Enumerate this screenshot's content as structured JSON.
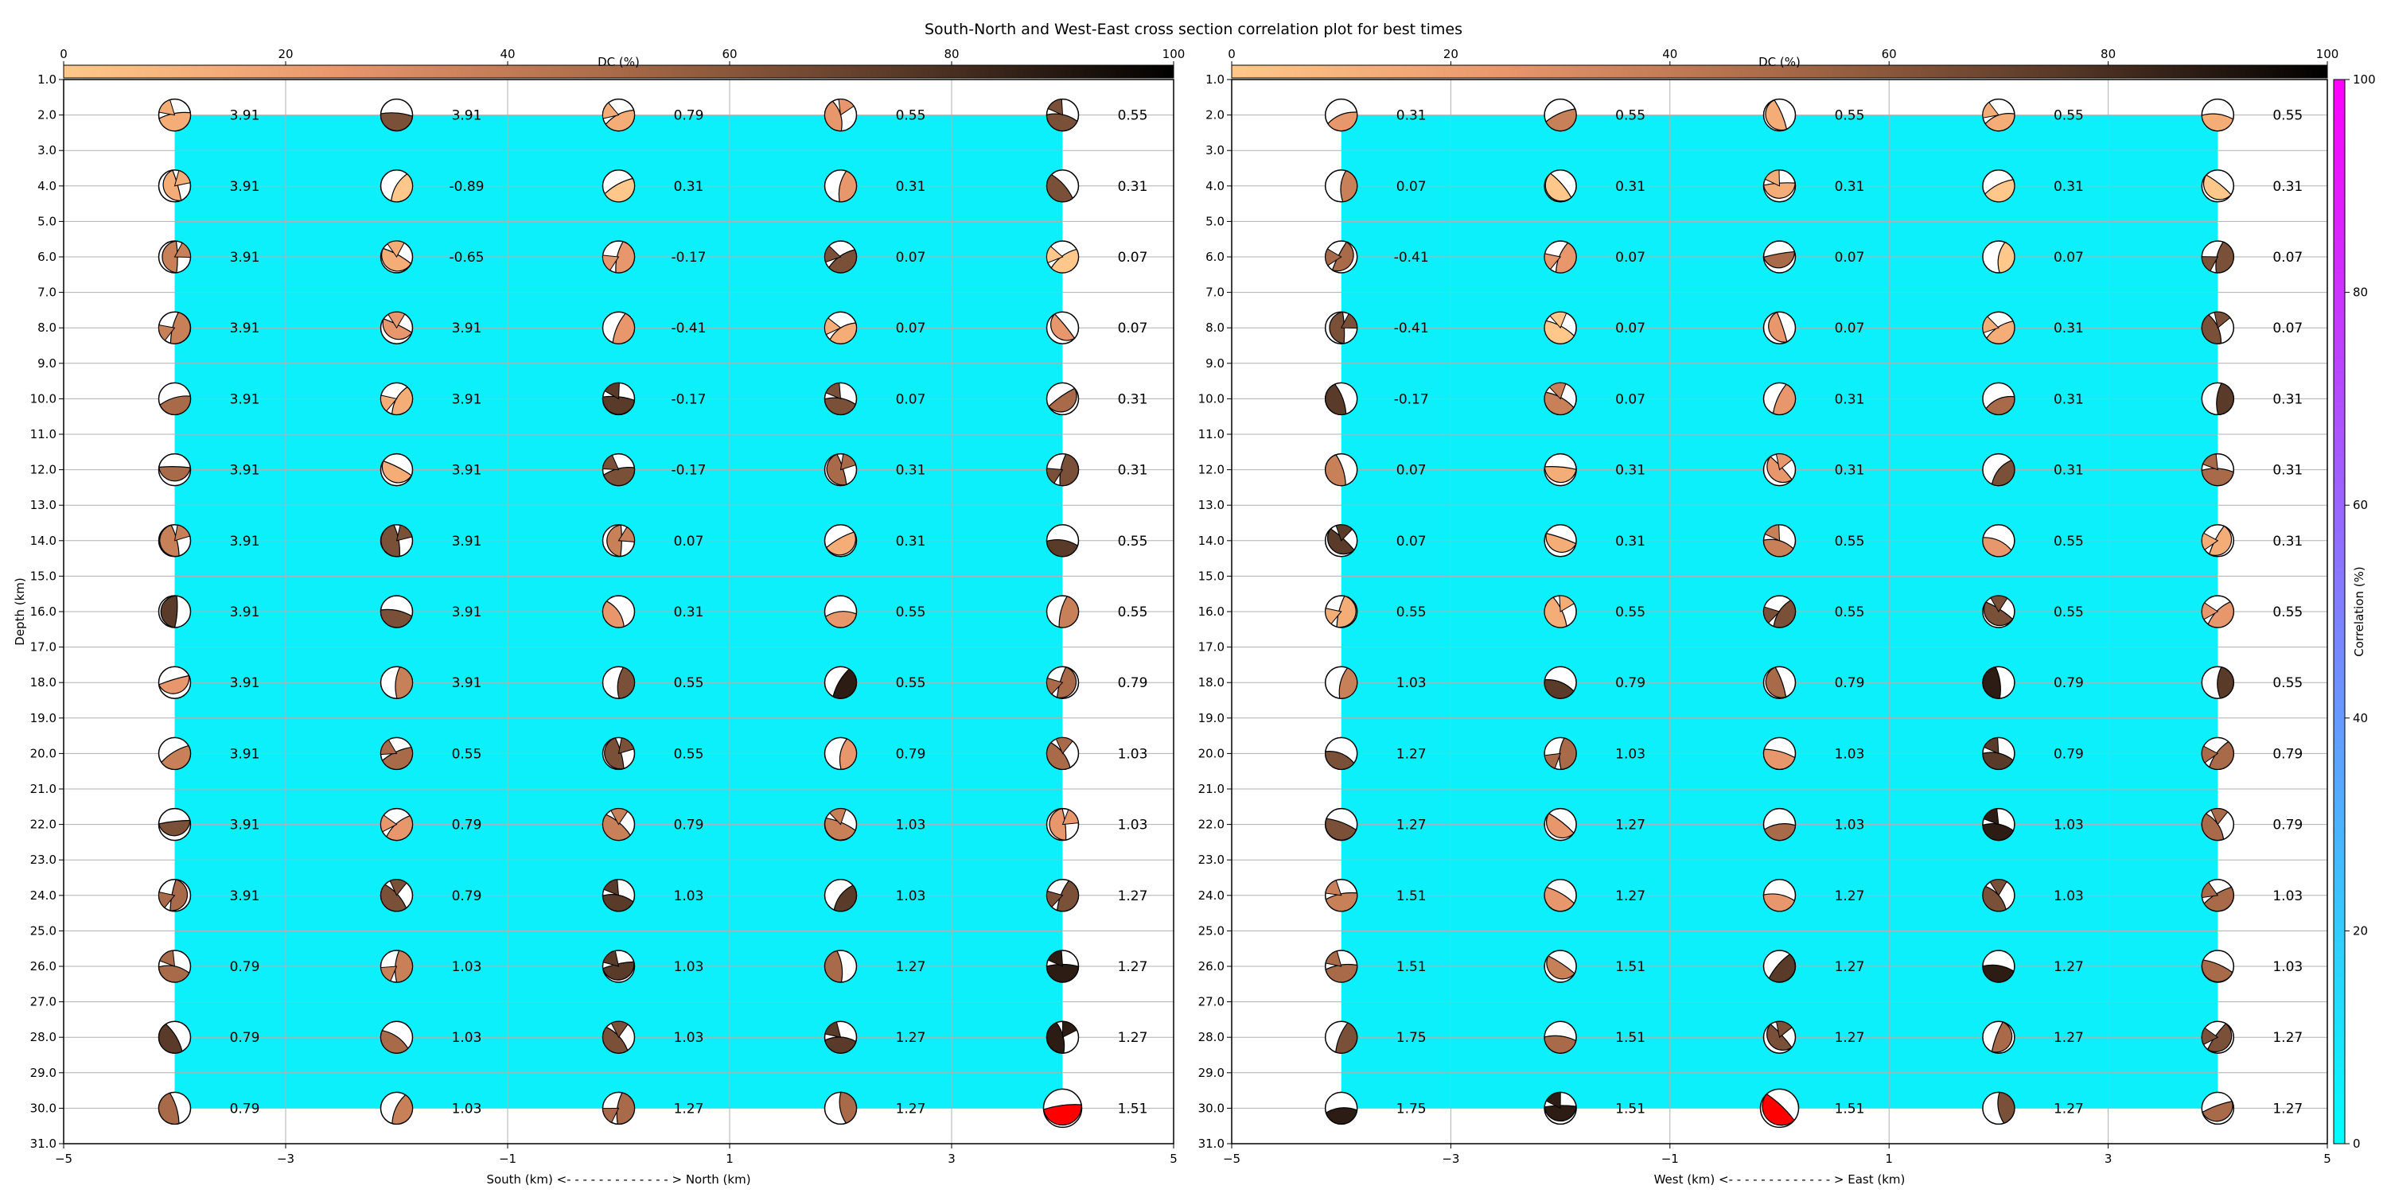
{
  "title": "South-North and West-East cross section correlation plot for best times",
  "colors": {
    "sampled_area": "#0cf0fc",
    "highlight_best": "#ff0000",
    "dc_colormap": [
      "#ffc88a",
      "#e8966c",
      "#a86a48",
      "#5a3a28",
      "#000000"
    ],
    "corr_colormap": [
      "#00ffff",
      "#ff00ff"
    ]
  },
  "dc_colorbar": {
    "label": "DC (%)",
    "ticks": [
      "0",
      "20",
      "40",
      "60",
      "80",
      "100"
    ]
  },
  "corr_colorbar": {
    "label": "Correlation (%)",
    "ticks": [
      "0",
      "20",
      "40",
      "60",
      "80",
      "100"
    ]
  },
  "y_axis": {
    "label": "Depth (km)",
    "ticks": [
      "1.0",
      "2.0",
      "3.0",
      "4.0",
      "5.0",
      "6.0",
      "7.0",
      "8.0",
      "9.0",
      "10.0",
      "11.0",
      "12.0",
      "13.0",
      "14.0",
      "15.0",
      "16.0",
      "17.0",
      "18.0",
      "19.0",
      "20.0",
      "21.0",
      "22.0",
      "23.0",
      "24.0",
      "25.0",
      "26.0",
      "27.0",
      "28.0",
      "29.0",
      "30.0",
      "31.0"
    ]
  },
  "chart_data": [
    {
      "type": "scatter",
      "x_axis": {
        "label": "South (km) <- - - - - - - - - - - - - > North (km)",
        "ticks": [
          "−5",
          "−3",
          "−1",
          "1",
          "3",
          "5"
        ],
        "xlim": [
          -5,
          5
        ]
      },
      "ylim": [
        31,
        1
      ],
      "grid": true,
      "x": [
        -4,
        -2,
        0,
        2,
        4
      ],
      "depths": [
        2,
        4,
        6,
        8,
        10,
        12,
        14,
        16,
        18,
        20,
        22,
        24,
        26,
        28,
        30
      ],
      "labels": [
        [
          "3.91",
          "3.91",
          "0.79",
          "0.55",
          "0.55"
        ],
        [
          "3.91",
          "-0.89",
          "0.31",
          "0.31",
          "0.31"
        ],
        [
          "3.91",
          "-0.65",
          "-0.17",
          "0.07",
          "0.07"
        ],
        [
          "3.91",
          "3.91",
          "-0.41",
          "0.07",
          "0.07"
        ],
        [
          "3.91",
          "3.91",
          "-0.17",
          "0.07",
          "0.31"
        ],
        [
          "3.91",
          "3.91",
          "-0.17",
          "0.31",
          "0.31"
        ],
        [
          "3.91",
          "3.91",
          "0.07",
          "0.31",
          "0.55"
        ],
        [
          "3.91",
          "3.91",
          "0.31",
          "0.55",
          "0.55"
        ],
        [
          "3.91",
          "3.91",
          "0.55",
          "0.55",
          "0.79"
        ],
        [
          "3.91",
          "0.55",
          "0.55",
          "0.79",
          "1.03"
        ],
        [
          "3.91",
          "0.79",
          "0.79",
          "1.03",
          "1.03"
        ],
        [
          "3.91",
          "0.79",
          "1.03",
          "1.03",
          "1.27"
        ],
        [
          "0.79",
          "1.03",
          "1.03",
          "1.27",
          "1.27"
        ],
        [
          "0.79",
          "1.03",
          "1.03",
          "1.27",
          "1.27"
        ],
        [
          "0.79",
          "1.03",
          "1.27",
          "1.27",
          "1.51"
        ]
      ],
      "best": {
        "x": 4,
        "depth": 30
      }
    },
    {
      "type": "scatter",
      "x_axis": {
        "label": "West (km) <- - - - - - - - - - - - - > East (km)",
        "ticks": [
          "−5",
          "−3",
          "−1",
          "1",
          "3",
          "5"
        ],
        "xlim": [
          -5,
          5
        ]
      },
      "ylim": [
        31,
        1
      ],
      "grid": true,
      "x": [
        -4,
        -2,
        0,
        2,
        4
      ],
      "depths": [
        2,
        4,
        6,
        8,
        10,
        12,
        14,
        16,
        18,
        20,
        22,
        24,
        26,
        28,
        30
      ],
      "labels": [
        [
          "0.31",
          "0.55",
          "0.55",
          "0.55",
          "0.55"
        ],
        [
          "0.07",
          "0.31",
          "0.31",
          "0.31",
          "0.31"
        ],
        [
          "-0.41",
          "0.07",
          "0.07",
          "0.07",
          "0.07"
        ],
        [
          "-0.41",
          "0.07",
          "0.07",
          "0.31",
          "0.07"
        ],
        [
          "-0.17",
          "0.07",
          "0.31",
          "0.31",
          "0.31"
        ],
        [
          "0.07",
          "0.31",
          "0.31",
          "0.31",
          "0.31"
        ],
        [
          "0.07",
          "0.31",
          "0.55",
          "0.55",
          "0.31"
        ],
        [
          "0.55",
          "0.55",
          "0.55",
          "0.55",
          "0.55"
        ],
        [
          "1.03",
          "0.79",
          "0.79",
          "0.79",
          "0.55"
        ],
        [
          "1.27",
          "1.03",
          "1.03",
          "0.79",
          "0.79"
        ],
        [
          "1.27",
          "1.27",
          "1.03",
          "1.03",
          "0.79"
        ],
        [
          "1.51",
          "1.27",
          "1.27",
          "1.03",
          "1.03"
        ],
        [
          "1.51",
          "1.51",
          "1.27",
          "1.27",
          "1.03"
        ],
        [
          "1.75",
          "1.51",
          "1.27",
          "1.27",
          "1.27"
        ],
        [
          "1.75",
          "1.51",
          "1.51",
          "1.27",
          "1.27"
        ]
      ],
      "best": {
        "x": 0,
        "depth": 30
      }
    }
  ]
}
